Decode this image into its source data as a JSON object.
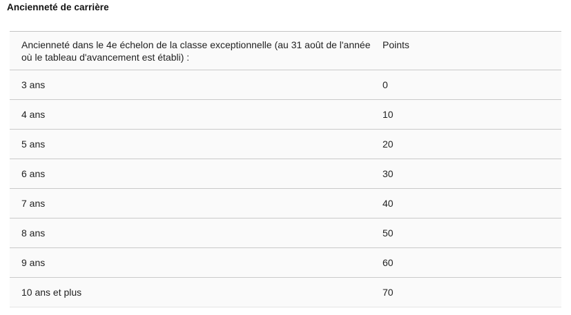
{
  "section_title": "Ancienneté de carrière",
  "table": {
    "header": {
      "label": "Ancienneté dans le 4e échelon de la classe exceptionnelle (au 31 août de l'année où le tableau d'avancement est établi) :",
      "points": "Points"
    },
    "rows": [
      {
        "label": "3 ans",
        "points": "0"
      },
      {
        "label": "4 ans",
        "points": "10"
      },
      {
        "label": "5 ans",
        "points": "20"
      },
      {
        "label": "6 ans",
        "points": "30"
      },
      {
        "label": "7 ans",
        "points": "40"
      },
      {
        "label": "8 ans",
        "points": "50"
      },
      {
        "label": "9 ans",
        "points": "60"
      },
      {
        "label": "10 ans et plus",
        "points": "70"
      }
    ]
  },
  "colors": {
    "text": "#1f1f1f",
    "separator": "#c9c9c9",
    "table_background": "#fafafa",
    "page_background": "#ffffff"
  }
}
